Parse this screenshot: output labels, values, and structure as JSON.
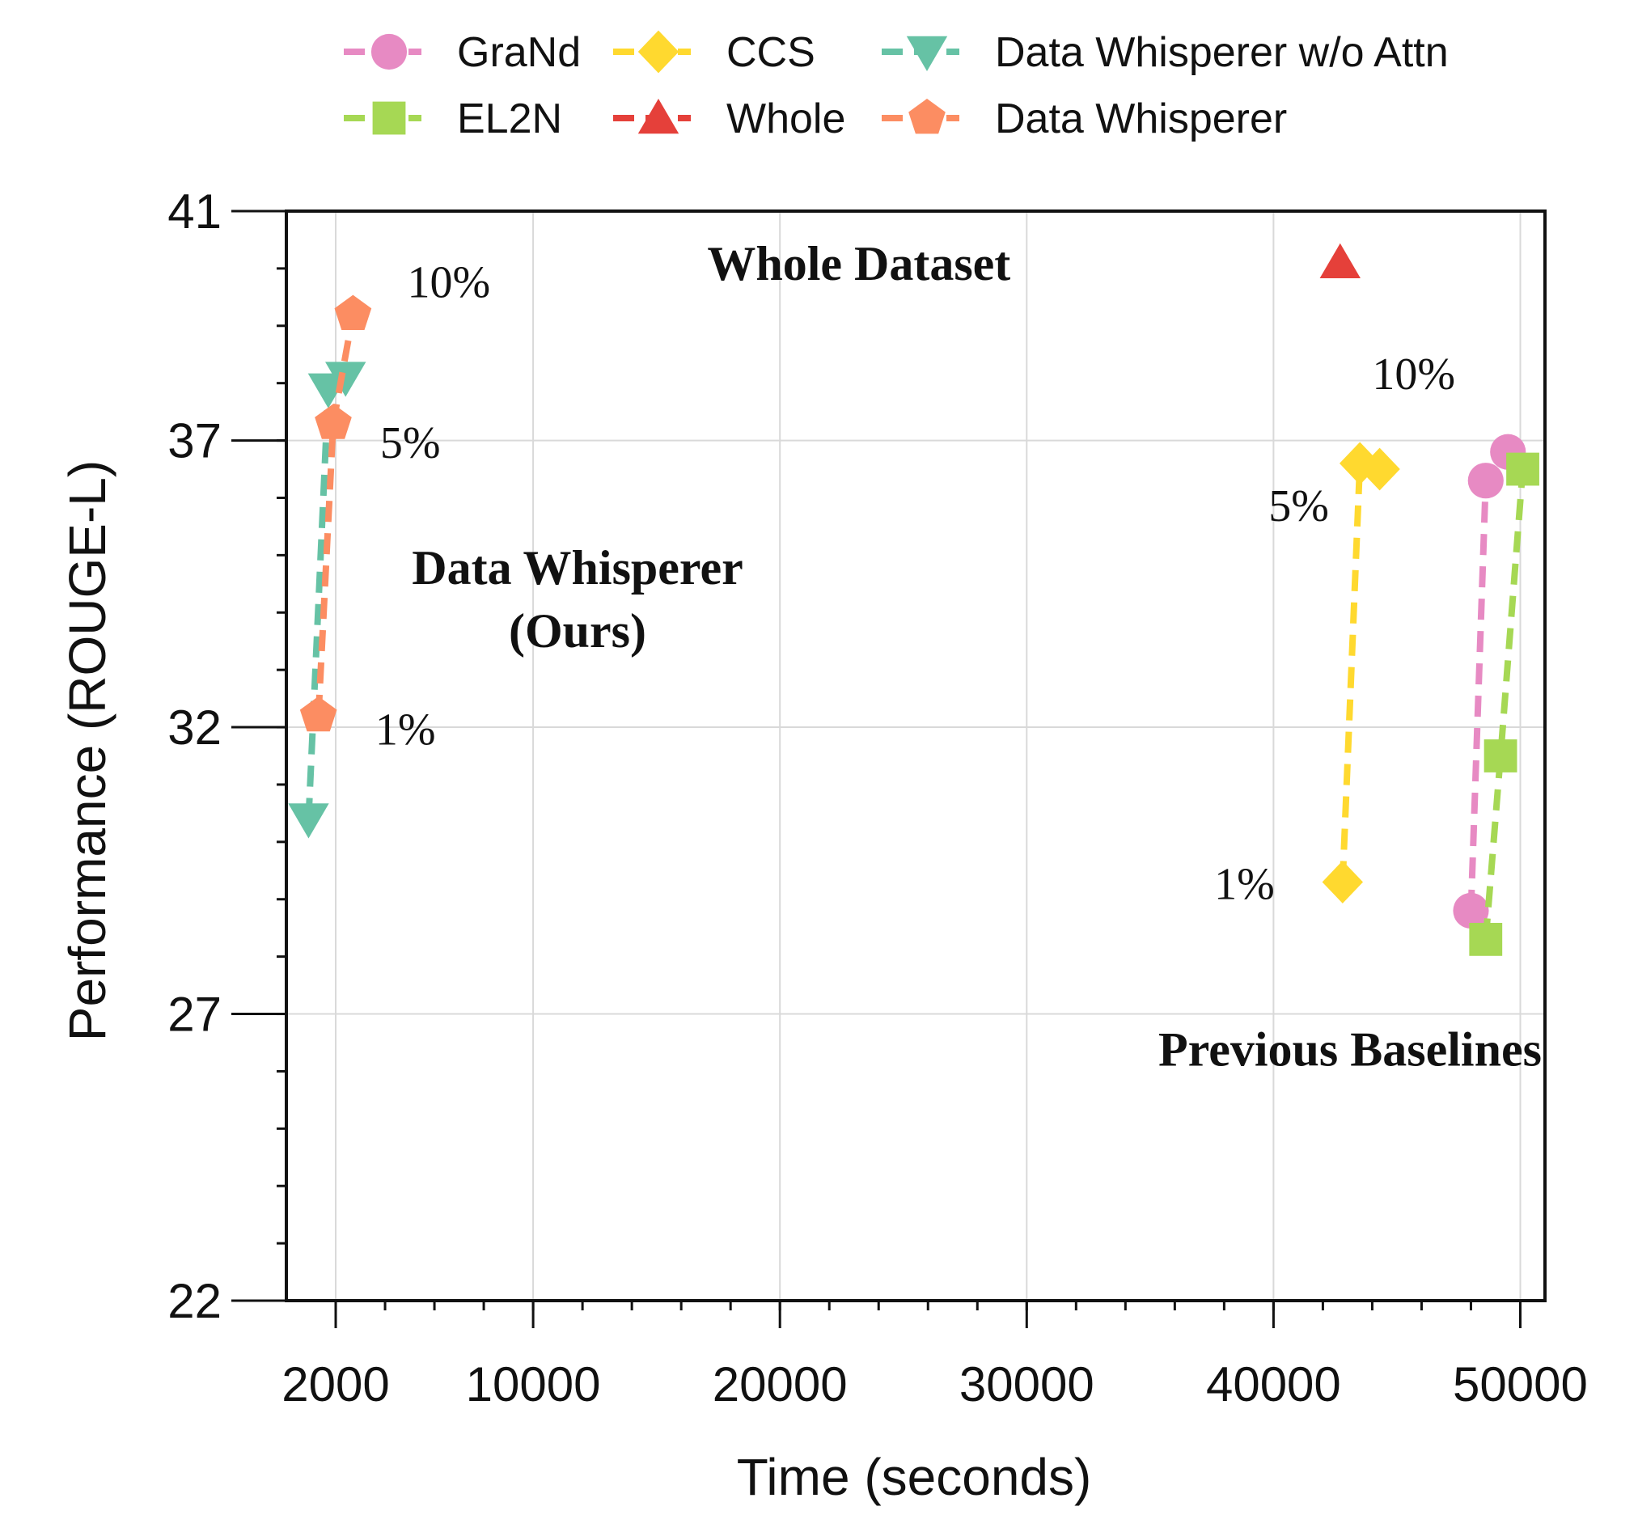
{
  "chart_data": {
    "type": "line",
    "xlabel": "Time (seconds)",
    "ylabel": "Performance (ROUGE-L)",
    "xlim": [
      0,
      51000
    ],
    "ylim": [
      22,
      41
    ],
    "xticks": [
      2000,
      10000,
      20000,
      30000,
      40000,
      50000
    ],
    "yticks": [
      22,
      27,
      32,
      37,
      41
    ],
    "x_minor_step": 2000,
    "y_minor_step": 1,
    "grid": true,
    "legend_position": "top",
    "series": [
      {
        "name": "GraNd",
        "color": "#E78AC3",
        "marker": "circle",
        "dashed": true,
        "points": [
          {
            "x": 48000,
            "y": 28.8
          },
          {
            "x": 48600,
            "y": 36.3
          },
          {
            "x": 49500,
            "y": 36.8
          }
        ]
      },
      {
        "name": "EL2N",
        "color": "#A6D854",
        "marker": "square",
        "dashed": true,
        "points": [
          {
            "x": 48600,
            "y": 28.3
          },
          {
            "x": 49200,
            "y": 31.5
          },
          {
            "x": 50100,
            "y": 36.5
          }
        ]
      },
      {
        "name": "CCS",
        "color": "#FFD92F",
        "marker": "diamond",
        "dashed": true,
        "points": [
          {
            "x": 42800,
            "y": 29.3
          },
          {
            "x": 43500,
            "y": 36.6
          },
          {
            "x": 44300,
            "y": 36.5
          }
        ]
      },
      {
        "name": "Whole",
        "color": "#E5403A",
        "marker": "triangle-up",
        "dashed": true,
        "points": [
          {
            "x": 42700,
            "y": 40.1
          }
        ]
      },
      {
        "name": "Data Whisperer w/o Attn",
        "color": "#66C2A5",
        "marker": "triangle-down",
        "dashed": true,
        "points": [
          {
            "x": 900,
            "y": 30.4
          },
          {
            "x": 1700,
            "y": 37.9
          },
          {
            "x": 2400,
            "y": 38.1
          }
        ]
      },
      {
        "name": "Data Whisperer",
        "color": "#FC8D62",
        "marker": "pentagon",
        "dashed": true,
        "points": [
          {
            "x": 1300,
            "y": 32.2
          },
          {
            "x": 1900,
            "y": 37.3
          },
          {
            "x": 2700,
            "y": 39.2
          }
        ]
      }
    ],
    "annotations": [
      {
        "text": "10%",
        "x": 4900,
        "y": 39.5,
        "kind": "pct"
      },
      {
        "text": "5%",
        "x": 3800,
        "y": 36.7,
        "kind": "pct"
      },
      {
        "text": "1%",
        "x": 3600,
        "y": 31.7,
        "kind": "pct"
      },
      {
        "text": "10%",
        "x": 44000,
        "y": 37.9,
        "kind": "pct"
      },
      {
        "text": "5%",
        "x": 39800,
        "y": 35.6,
        "kind": "pct"
      },
      {
        "text": "1%",
        "x": 37600,
        "y": 29.0,
        "kind": "pct"
      },
      {
        "text": "Whole Dataset",
        "x": 23200,
        "y": 39.8,
        "kind": "region"
      },
      {
        "text": "Data Whisperer",
        "x": 11800,
        "y": 34.5,
        "kind": "region"
      },
      {
        "text": "(Ours)",
        "x": 11800,
        "y": 33.4,
        "kind": "region"
      },
      {
        "text": "Previous Baselines",
        "x": 43100,
        "y": 26.1,
        "kind": "region"
      }
    ]
  }
}
